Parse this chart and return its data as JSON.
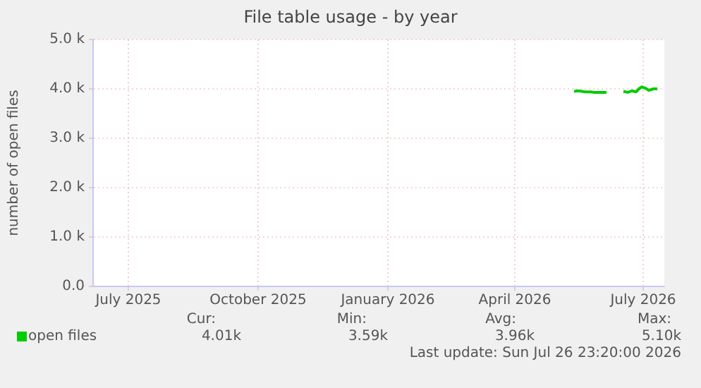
{
  "chart_data": {
    "type": "line",
    "title": "File table usage - by year",
    "ylabel": "number of open files",
    "x": [
      "2026-05-13",
      "2026-05-16",
      "2026-05-21",
      "2026-05-25",
      "2026-05-27",
      "2026-06-05",
      "2026-06-08",
      "2026-06-17",
      "2026-06-20",
      "2026-06-23",
      "2026-06-26",
      "2026-06-28",
      "2026-06-30",
      "2026-07-03",
      "2026-07-05",
      "2026-07-08",
      "2026-07-11"
    ],
    "series": [
      {
        "name": "open files",
        "color": "#00cc00",
        "values": [
          3.95,
          3.96,
          3.94,
          3.94,
          3.93,
          3.93,
          null,
          3.95,
          3.93,
          3.96,
          3.94,
          4.0,
          4.04,
          4.01,
          3.97,
          4.0,
          4.0
        ]
      }
    ],
    "xlim": [
      "2025-06-06",
      "2026-07-16"
    ],
    "xticks": [
      {
        "value": "2025-07-01",
        "label": "July 2025"
      },
      {
        "value": "2025-10-01",
        "label": "October 2025"
      },
      {
        "value": "2026-01-01",
        "label": "January 2026"
      },
      {
        "value": "2026-04-01",
        "label": "April 2026"
      },
      {
        "value": "2026-07-01",
        "label": "July 2026"
      }
    ],
    "ylim": [
      0,
      5
    ],
    "yticks": [
      {
        "value": 0,
        "label": "0.0"
      },
      {
        "value": 1,
        "label": "1.0 k"
      },
      {
        "value": 2,
        "label": "2.0 k"
      },
      {
        "value": 3,
        "label": "3.0 k"
      },
      {
        "value": 4,
        "label": "4.0 k"
      },
      {
        "value": 5,
        "label": "5.0 k"
      }
    ],
    "grid": true,
    "legend": "bottom left",
    "marker": "none",
    "line_style": "solid",
    "annotations": [
      "Cur:",
      "Min:",
      "Avg:",
      "Max:",
      "4.01k",
      "3.59k",
      "3.96k",
      "5.10k",
      "Last update: Sun Jul 26 23:20:00 2026"
    ]
  }
}
